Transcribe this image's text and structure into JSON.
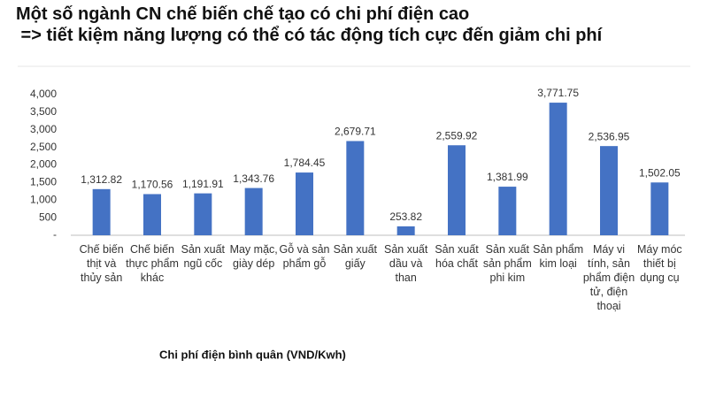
{
  "chart_data": {
    "type": "bar",
    "title": "Một số ngành CN chế biến chế tạo có chi phí điện cao",
    "subtitle": " => tiết kiệm năng lượng có thể có tác động tích cực đến giảm chi phí",
    "x_label": "Chi phí điện bình quân (VND/Kwh)",
    "categories": [
      "Chế biến thịt và thủy sản",
      "Chế biến thực phẩm khác",
      "Sản xuất ngũ cốc",
      "May mặc, giày dép",
      "Gỗ và sản phẩm gỗ",
      "Sản xuất giấy",
      "Sản xuất dầu và than",
      "Sản xuất hóa chất",
      "Sản xuất sản phẩm phi kim",
      "Sản phẩm kim loại",
      "Máy vi tính, sản phẩm điện tử, điện thoại",
      "Máy móc thiết bị dụng cụ"
    ],
    "values": [
      1312.82,
      1170.56,
      1191.91,
      1343.76,
      1784.45,
      2679.71,
      253.82,
      2559.92,
      1381.99,
      3771.75,
      2536.95,
      1502.05
    ],
    "value_labels": [
      "1,312.82",
      "1,170.56",
      "1,191.91",
      "1,343.76",
      "1,784.45",
      "2,679.71",
      "253.82",
      "2,559.92",
      "1,381.99",
      "3,771.75",
      "2,536.95",
      "1,502.05"
    ],
    "color": "#4472c4",
    "ylim": [
      0,
      4000
    ],
    "yticks": [
      {
        "value": 0,
        "label": "-"
      },
      500,
      {
        "value": 1000,
        "label": "1,000"
      },
      {
        "value": 1500,
        "label": "1,500"
      },
      {
        "value": 2000,
        "label": "2,000"
      },
      {
        "value": 2500,
        "label": "2,500"
      },
      {
        "value": 3000,
        "label": "3,000"
      },
      {
        "value": 3500,
        "label": "3,500"
      },
      {
        "value": 4000,
        "label": "4,000"
      }
    ],
    "grid": false
  }
}
